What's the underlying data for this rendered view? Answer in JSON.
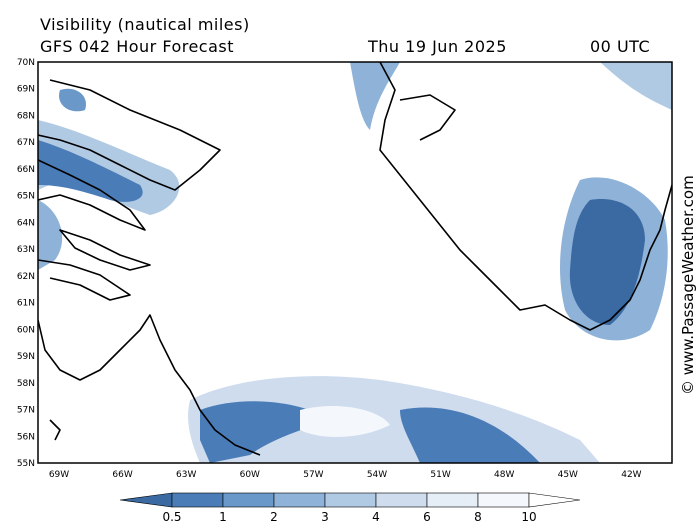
{
  "header": {
    "title": "Visibility (nautical miles)",
    "model": "GFS 042 Hour Forecast",
    "date": "Thu 19 Jun 2025",
    "time": "00 UTC"
  },
  "map": {
    "lat_labels": [
      "70N",
      "69N",
      "68N",
      "67N",
      "66N",
      "65N",
      "64N",
      "63N",
      "62N",
      "61N",
      "60N",
      "59N",
      "58N",
      "57N",
      "56N",
      "55N"
    ],
    "lon_labels": [
      "69W",
      "66W",
      "63W",
      "60W",
      "57W",
      "54W",
      "51W",
      "48W",
      "45W",
      "42W"
    ]
  },
  "colorbar": {
    "levels": [
      0.5,
      1,
      2,
      3,
      4,
      6,
      8,
      10
    ],
    "colors": [
      "#3b6aa3",
      "#4a7cb7",
      "#6a98c8",
      "#8fb2d8",
      "#b1cae4",
      "#cedcee",
      "#e5edf7",
      "#f4f7fb",
      "#ffffff"
    ]
  },
  "credit": "© www.PassageWeather.com"
}
